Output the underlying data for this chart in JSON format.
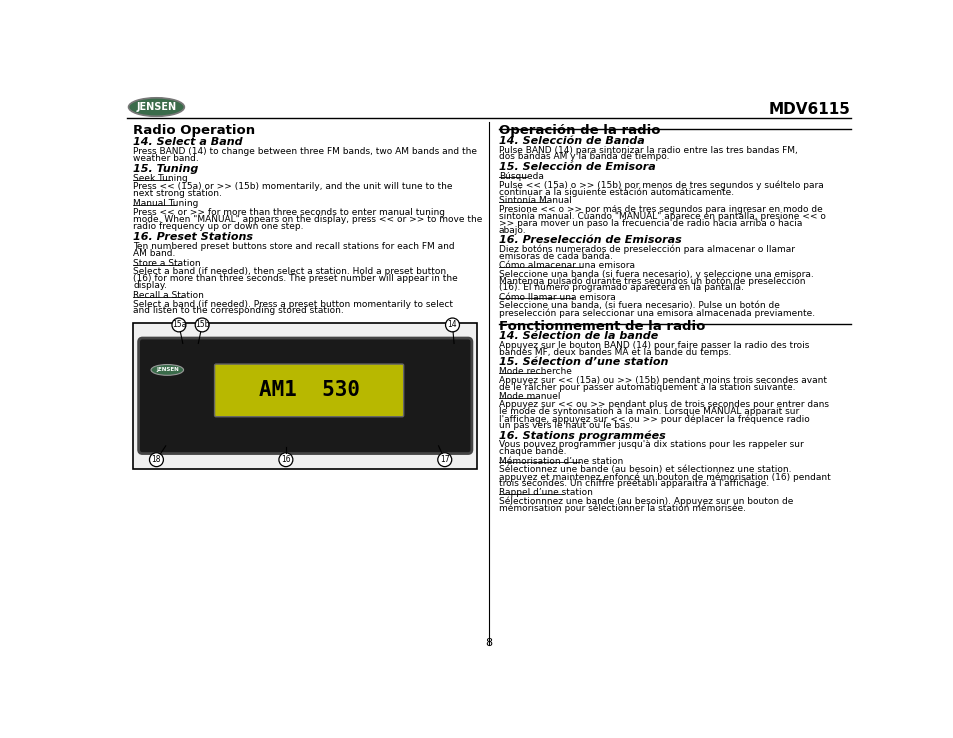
{
  "page_num": "8",
  "model": "MDV6115",
  "bg_color": "#ffffff",
  "left_col": {
    "section_title": "Radio Operation",
    "items": [
      {
        "heading": "14. Select a Band",
        "body": "Press BAND (14) to change between three FM bands, two AM bands and the weather band."
      },
      {
        "heading": "15. Tuning",
        "subsections": [
          {
            "subheading": "Seek Tuning",
            "body": "Press << (15a) or >> (15b) momentarily, and the unit will tune to the next strong station."
          },
          {
            "subheading": "Manual Tuning",
            "body": "Press << or >> for more than three seconds to enter manual tuning mode. When \"MANUAL\" appears on the display, press << or >> to move the radio frequency up or down one step."
          }
        ]
      },
      {
        "heading": "16. Preset Stations",
        "body": "Ten numbered preset buttons store and recall stations for each FM and AM band.",
        "subsections": [
          {
            "subheading": "Store a Station",
            "body": "Select a band (if needed), then select a station. Hold a preset button (16) for more than three seconds. The preset number will appear in the display."
          },
          {
            "subheading": "Recall a Station",
            "body": "Select a band (if needed). Press a preset button momentarily to select and listen to the corresponding stored station."
          }
        ]
      }
    ]
  },
  "right_col": {
    "section1_title": "Operación de la radio",
    "section1_items": [
      {
        "heading": "14. Selección de Banda",
        "body": "Pulse BAND (14) para sintonizar la radio entre las tres bandas FM, dos bandas AM y la banda de tiempo."
      },
      {
        "heading": "15. Selección de Emisora",
        "subsections": [
          {
            "subheading": "Búsqueda",
            "body": "Pulse << (15a) o >> (15b) por menos de tres segundos y suéltelo para continuar a la siguiente estación automáticamente."
          },
          {
            "subheading": "Sintonía Manual",
            "body": "Presione << o >> por más de tres segundos para ingresar en modo de sintonía manual. Cuando \"MANUAL\" aparece en pantalla, presione << o >> para mover un paso la frecuencia de radio hacia arriba o hacia abajo."
          }
        ]
      },
      {
        "heading": "16. Preselección de Emisoras",
        "body": "Diez botóns numerados de preselección para almacenar o llamar emisoras de cada banda.",
        "subsections": [
          {
            "subheading": "Cómo almacenar una emisora",
            "body": "Seleccione una banda (si fuera necesario), y seleccione una emisora. Mantenga pulsado durante tres segundos un botón de preselección (16). El número programado aparecerá en la pantalla."
          },
          {
            "subheading": "Cómo llamar una emisora",
            "body": "Seleccione una banda, (si fuera necesario). Pulse un botón de preselección para seleccionar una emisora almacenada previamente."
          }
        ]
      }
    ],
    "section2_title": "Fonctionnement de la radio",
    "section2_items": [
      {
        "heading": "14. Sélection de la bande",
        "body": "Appuyez sur le bouton BAND (14) pour faire passer la radio des trois bandes MF, deux bandes MA et la bande du temps."
      },
      {
        "heading": "15. Sélection d’une station",
        "subsections": [
          {
            "subheading": "Mode recherche",
            "body": "Appuyez sur << (15a) ou >> (15b) pendant moins trois secondes avant de le râlcher pour passer automatiquement à la station suivante."
          },
          {
            "subheading": "Mode manuel",
            "body": "Appuyez sur << ou >> pendant plus de trois secondes pour entrer dans le mode de syntonisation à la main. Lorsque MANUAL apparait sur l'affichage, appuyez sur << ou >> pour déplacer la fréquence radio un pas vers le haut ou le bas."
          }
        ]
      },
      {
        "heading": "16. Stations programmées",
        "body": "Vous pouvez programmer jusqu'à dix stations pour les rappeler sur chaque bande.",
        "subsections": [
          {
            "subheading": "Mémorisation d’une station",
            "body": "Sélectionnez une bande (au besoin) et sélectionnez une station. appuyez et maintenez enfoncé un bouton de mémorisation (16) pendant trois secondes. Un chiffre préétabli apparaitra à l'affichage."
          },
          {
            "subheading": "Rappel d’une station",
            "body": "Sélectionnnez une bande (au besoin). Appuyez sur un bouton de mémorisation pour sélectionner la station mémorisée."
          }
        ]
      }
    ]
  }
}
